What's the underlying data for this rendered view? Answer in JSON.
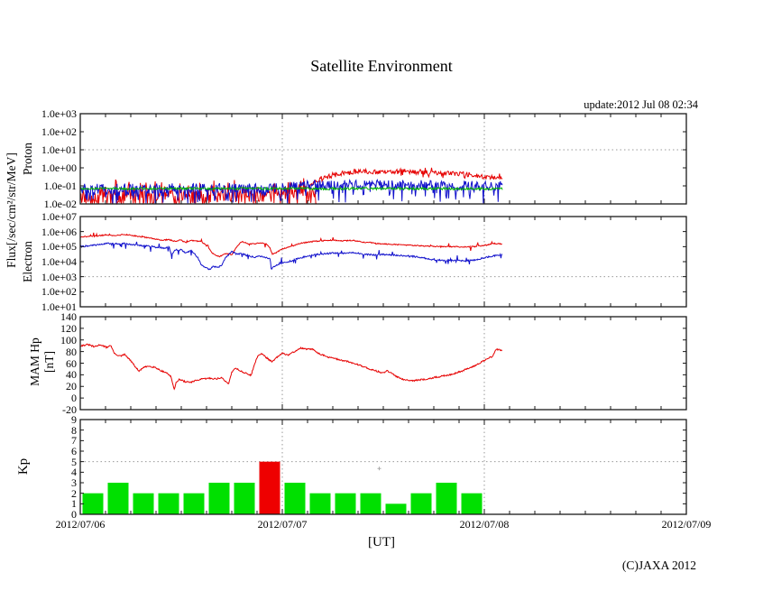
{
  "page": {
    "title": "Satellite Environment",
    "update": "update:2012 Jul 08 02:34",
    "copyright": "(C)JAXA 2012",
    "xlabel": "[UT]"
  },
  "labels": {
    "flux_unit": "Flux[/sec/cm²/str/MeV]",
    "proton": "Proton",
    "electron": "Electron",
    "mam_line1": "MAM Hp",
    "mam_line2": "[nT]",
    "kp": "Kp"
  },
  "colors": {
    "line_red": "#e60000",
    "line_green": "#00b400",
    "line_blue": "#1111cc",
    "bar_green": "#00e000",
    "bar_red": "#ee0000",
    "frame": "#1a1a1a",
    "grid": "#999999",
    "marker": "#aaaaaa"
  },
  "chart_data": {
    "x_axis": {
      "tick_days": [
        0,
        1,
        2,
        3
      ],
      "tick_labels": [
        "2012/07/06",
        "2012/07/07",
        "2012/07/08",
        "2012/07/09"
      ],
      "grid_days": [
        1,
        2
      ],
      "minor_per_day": 8
    },
    "panels": [
      {
        "id": "proton",
        "type": "line",
        "scale": "log",
        "ymin": -2,
        "ymax": 3,
        "yticks": {
          "labels": [
            "1.0e+03",
            "1.0e+02",
            "1.0e+01",
            "1.0e+00",
            "1.0e-01",
            "1.0e-02"
          ],
          "values": [
            3,
            2,
            1,
            0,
            -1,
            -2
          ]
        },
        "hgrid": 1,
        "series": [
          {
            "name": "proton-red-background",
            "color": "#e60000",
            "seed": 11,
            "step": 0.0035,
            "jitter": 0.4,
            "spike": {
              "p": 0.5,
              "d": 0.7,
              "dir": 0
            },
            "x": [
              0,
              0.55,
              0.9,
              0.95,
              1.12,
              1.17
            ],
            "v": [
              0.025,
              0.025,
              0.03,
              0.045,
              0.045,
              0.02
            ]
          },
          {
            "name": "proton-red-flux",
            "color": "#e60000",
            "seed": 12,
            "step": 0.0035,
            "jitter": 0.13,
            "spike": {
              "p": 0.1,
              "d": 0.2,
              "dir": 0
            },
            "x": [
              1.13,
              1.17,
              1.22,
              1.3,
              1.4,
              1.5,
              1.6,
              1.7,
              1.8,
              1.9,
              1.95,
              2.0,
              2.05,
              2.09
            ],
            "v": [
              0.1,
              0.18,
              0.32,
              0.5,
              0.62,
              0.58,
              0.62,
              0.55,
              0.5,
              0.45,
              0.4,
              0.32,
              0.28,
              0.3
            ]
          },
          {
            "name": "proton-blue-flux",
            "color": "#1111cc",
            "seed": 13,
            "step": 0.0035,
            "jitter": 0.28,
            "spike": {
              "p": 0.22,
              "d": 0.85,
              "dir": -1
            },
            "x": [
              0,
              1.0,
              1.1,
              1.3,
              1.6,
              2.09
            ],
            "v": [
              0.07,
              0.075,
              0.1,
              0.12,
              0.11,
              0.1
            ]
          },
          {
            "name": "proton-green-flux",
            "color": "#00b400",
            "seed": 14,
            "step": 0.0035,
            "jitter": 0.07,
            "x": [
              0,
              2.09
            ],
            "v": [
              0.072,
              0.07
            ]
          }
        ]
      },
      {
        "id": "electron",
        "type": "line",
        "scale": "log",
        "ymin": 1,
        "ymax": 7,
        "yticks": {
          "labels": [
            "1.0e+07",
            "1.0e+06",
            "1.0e+05",
            "1.0e+04",
            "1.0e+03",
            "1.0e+02",
            "1.0e+01"
          ],
          "values": [
            7,
            6,
            5,
            4,
            3,
            2,
            1
          ]
        },
        "hgrid": 3,
        "series": [
          {
            "name": "electron-red-flux",
            "color": "#e60000",
            "seed": 21,
            "step": 0.003,
            "jitter": 0.035,
            "spike": {
              "p": 0.04,
              "d": 0.25,
              "dir": 0
            },
            "x": [
              0,
              0.08,
              0.12,
              0.17,
              0.22,
              0.28,
              0.33,
              0.38,
              0.41,
              0.44,
              0.47,
              0.5,
              0.52,
              0.55,
              0.6,
              0.63,
              0.66,
              0.69,
              0.72,
              0.75,
              0.78,
              0.8,
              0.83,
              0.86,
              0.89,
              0.92,
              0.94,
              0.95,
              0.97,
              1.0,
              1.05,
              1.1,
              1.15,
              1.2,
              1.25,
              1.3,
              1.35,
              1.4,
              1.45,
              1.5,
              1.55,
              1.6,
              1.65,
              1.7,
              1.75,
              1.8,
              1.85,
              1.9,
              1.95,
              2.0,
              2.05,
              2.09
            ],
            "v": [
              450000,
              500000,
              600000,
              550000,
              650000,
              500000,
              400000,
              300000,
              270000,
              300000,
              220000,
              280000,
              180000,
              260000,
              220000,
              100000,
              30000,
              22000,
              35000,
              30000,
              120000,
              220000,
              160000,
              150000,
              180000,
              160000,
              80000,
              30000,
              40000,
              70000,
              110000,
              180000,
              220000,
              250000,
              270000,
              240000,
              260000,
              200000,
              180000,
              150000,
              140000,
              130000,
              120000,
              110000,
              105000,
              100000,
              100000,
              95000,
              100000,
              120000,
              160000,
              150000
            ]
          },
          {
            "name": "electron-blue-flux",
            "color": "#1111cc",
            "seed": 22,
            "step": 0.003,
            "jitter": 0.05,
            "spike": {
              "p": 0.05,
              "d": 0.35,
              "dir": 0
            },
            "x": [
              0,
              0.08,
              0.12,
              0.17,
              0.22,
              0.28,
              0.33,
              0.38,
              0.41,
              0.44,
              0.45,
              0.47,
              0.5,
              0.52,
              0.55,
              0.58,
              0.6,
              0.62,
              0.64,
              0.66,
              0.68,
              0.7,
              0.72,
              0.75,
              0.78,
              0.8,
              0.83,
              0.86,
              0.89,
              0.92,
              0.94,
              0.945,
              0.97,
              1.0,
              1.05,
              1.1,
              1.15,
              1.2,
              1.25,
              1.3,
              1.35,
              1.4,
              1.45,
              1.5,
              1.55,
              1.6,
              1.65,
              1.7,
              1.75,
              1.8,
              1.85,
              1.9,
              1.95,
              2.0,
              2.05,
              2.09
            ],
            "v": [
              100000,
              130000,
              160000,
              150000,
              160000,
              130000,
              110000,
              90000,
              80000,
              90000,
              30000,
              60000,
              65000,
              40000,
              55000,
              20000,
              6000,
              4000,
              3000,
              5000,
              4000,
              6000,
              20000,
              45000,
              30000,
              35000,
              25000,
              20000,
              22000,
              18000,
              15000,
              3200,
              6000,
              8000,
              12000,
              20000,
              28000,
              32000,
              38000,
              35000,
              40000,
              32000,
              28000,
              30000,
              28000,
              25000,
              22000,
              18000,
              13000,
              12000,
              12000,
              11000,
              13000,
              18000,
              25000,
              30000
            ]
          }
        ]
      },
      {
        "id": "hp",
        "type": "line",
        "scale": "linear",
        "ymin": -20,
        "ymax": 140,
        "yticks": {
          "labels": [
            "140",
            "120",
            "100",
            "80",
            "60",
            "40",
            "20",
            "0",
            "-20"
          ],
          "values": [
            140,
            120,
            100,
            80,
            60,
            40,
            20,
            0,
            -20
          ]
        },
        "hgrid": null,
        "series": [
          {
            "name": "mam-hp",
            "color": "#e60000",
            "seed": 31,
            "step": 0.003,
            "jitter": 1.3,
            "x": [
              0,
              0.04,
              0.07,
              0.1,
              0.13,
              0.15,
              0.17,
              0.2,
              0.22,
              0.25,
              0.27,
              0.29,
              0.31,
              0.34,
              0.37,
              0.4,
              0.43,
              0.45,
              0.465,
              0.475,
              0.49,
              0.52,
              0.55,
              0.58,
              0.61,
              0.64,
              0.67,
              0.7,
              0.72,
              0.735,
              0.75,
              0.77,
              0.79,
              0.81,
              0.83,
              0.845,
              0.86,
              0.88,
              0.9,
              0.92,
              0.95,
              0.97,
              1.0,
              1.03,
              1.06,
              1.09,
              1.12,
              1.15,
              1.18,
              1.22,
              1.27,
              1.32,
              1.38,
              1.44,
              1.5,
              1.52,
              1.56,
              1.6,
              1.65,
              1.7,
              1.75,
              1.8,
              1.85,
              1.9,
              1.95,
              2.0,
              2.02,
              2.04,
              2.06,
              2.09
            ],
            "v": [
              90,
              92,
              88,
              92,
              87,
              91,
              76,
              72,
              75,
              64,
              55,
              46,
              52,
              55,
              53,
              47,
              43,
              36,
              14,
              28,
              32,
              28,
              27,
              31,
              33,
              34,
              33,
              35,
              28,
              25,
              45,
              52,
              47,
              44,
              41,
              39,
              55,
              74,
              76,
              70,
              62,
              69,
              77,
              74,
              80,
              86,
              84,
              84,
              77,
              71,
              67,
              63,
              57,
              49,
              43,
              47,
              38,
              32,
              30,
              32,
              35,
              38,
              42,
              48,
              55,
              65,
              68,
              72,
              84,
              82
            ]
          }
        ]
      },
      {
        "id": "kp",
        "type": "bar",
        "scale": "linear",
        "ymin": 0,
        "ymax": 9,
        "yticks": {
          "labels": [
            "9",
            "8",
            "7",
            "6",
            "5",
            "4",
            "3",
            "2",
            "1",
            "0"
          ],
          "values": [
            9,
            8,
            7,
            6,
            5,
            4,
            3,
            2,
            1,
            0
          ]
        },
        "hgrid": 5,
        "bars": {
          "name": "kp-index-bars",
          "values": [
            2,
            3,
            2,
            2,
            2,
            3,
            3,
            5,
            3,
            2,
            2,
            2,
            1,
            2,
            3,
            2
          ],
          "start_day": 0,
          "interval_days": 0.125,
          "threshold": 5,
          "color": "#00e000",
          "alert_color": "#ee0000"
        },
        "annotations": [
          {
            "type": "plus",
            "day": 1.48,
            "value": 4.35,
            "size": 4,
            "color": "#aaaaaa"
          }
        ]
      }
    ]
  }
}
